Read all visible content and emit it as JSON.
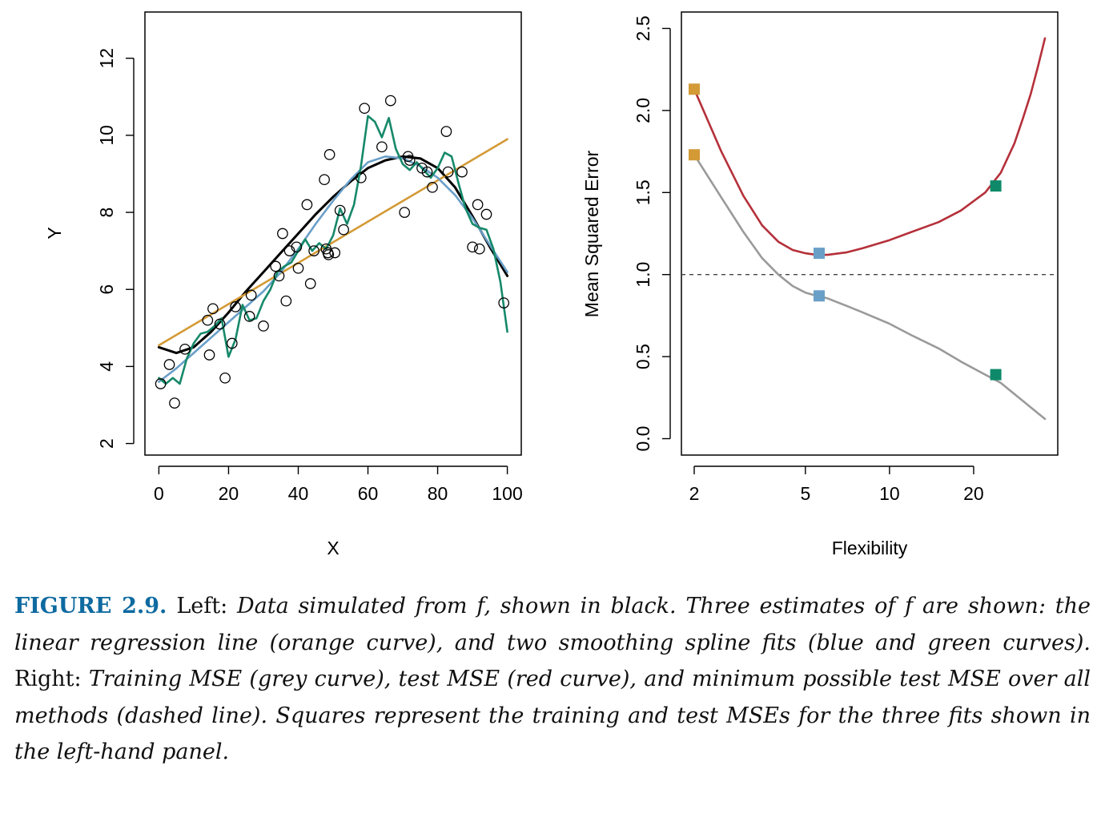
{
  "chart_data": [
    {
      "type": "scatter",
      "panel": "Left",
      "xlabel": "X",
      "ylabel": "Y",
      "xlim": [
        0,
        100
      ],
      "ylim": [
        1.7,
        13.2
      ],
      "xticks": [
        0,
        20,
        40,
        60,
        80,
        100
      ],
      "yticks": [
        2,
        4,
        6,
        8,
        10,
        12
      ],
      "points": {
        "x": [
          0.5,
          3,
          4.5,
          7.5,
          14,
          14.5,
          15.5,
          17.5,
          19,
          21,
          22,
          26,
          26.5,
          30,
          33.5,
          34.5,
          35.5,
          36.5,
          37.5,
          39.5,
          40,
          42.5,
          43.5,
          44.5,
          47.5,
          48,
          48.5,
          48.7,
          49,
          50.5,
          52,
          53,
          58,
          59,
          64,
          66.5,
          70.5,
          71.5,
          72,
          75.5,
          77,
          78.5,
          82.5,
          83,
          87,
          90,
          91.5,
          92,
          94,
          99
        ],
        "y": [
          3.55,
          4.05,
          3.05,
          4.45,
          5.2,
          4.3,
          5.5,
          5.1,
          3.7,
          4.6,
          5.55,
          5.3,
          5.85,
          5.05,
          6.6,
          6.35,
          7.45,
          5.7,
          7.0,
          7.1,
          6.55,
          8.2,
          6.15,
          7.0,
          8.85,
          7.05,
          6.95,
          6.9,
          9.5,
          6.95,
          8.05,
          7.55,
          8.9,
          10.7,
          9.7,
          10.9,
          8.0,
          9.45,
          9.35,
          9.15,
          9.05,
          8.65,
          10.1,
          9.05,
          9.05,
          7.1,
          8.2,
          7.05,
          7.95,
          5.65
        ]
      },
      "series": [
        {
          "color": "#000000",
          "x": [
            0,
            5,
            10,
            15,
            20,
            25,
            30,
            35,
            40,
            45,
            50,
            55,
            60,
            65,
            70,
            75,
            80,
            85,
            90,
            95,
            100
          ],
          "y": [
            4.5,
            4.35,
            4.5,
            4.9,
            5.4,
            5.95,
            6.45,
            6.95,
            7.45,
            7.95,
            8.4,
            8.8,
            9.15,
            9.35,
            9.45,
            9.4,
            9.15,
            8.65,
            7.9,
            7.1,
            6.35
          ]
        },
        {
          "color": "#d39a36",
          "x": [
            0,
            100
          ],
          "y": [
            4.55,
            9.9
          ]
        },
        {
          "color": "#6a9fc8",
          "x": [
            0,
            5,
            10,
            15,
            20,
            25,
            30,
            35,
            40,
            45,
            50,
            55,
            60,
            65,
            70,
            75,
            80,
            85,
            90,
            95,
            100
          ],
          "y": [
            3.6,
            3.95,
            4.35,
            4.75,
            5.15,
            5.55,
            5.95,
            6.45,
            7.05,
            7.7,
            8.3,
            8.85,
            9.3,
            9.45,
            9.4,
            9.2,
            8.9,
            8.45,
            7.85,
            7.15,
            6.45
          ]
        },
        {
          "color": "#16896a",
          "x": [
            0,
            2,
            4,
            6,
            8,
            10,
            12,
            14,
            16,
            18,
            20,
            22,
            24,
            26,
            28,
            30,
            32,
            34,
            36,
            38,
            40,
            42,
            44,
            46,
            48,
            50,
            52,
            54,
            56,
            58,
            60,
            62,
            64,
            66,
            68,
            70,
            72,
            74,
            76,
            78,
            80,
            82,
            84,
            86,
            88,
            90,
            92,
            94,
            96,
            98,
            100
          ],
          "y": [
            3.7,
            3.55,
            3.7,
            3.55,
            4.2,
            4.6,
            4.85,
            4.9,
            5.05,
            5.25,
            4.25,
            4.7,
            5.6,
            5.2,
            5.25,
            5.7,
            6.0,
            6.45,
            6.6,
            6.7,
            7.0,
            7.3,
            7.0,
            7.2,
            7.05,
            7.4,
            8.1,
            7.7,
            8.2,
            9.2,
            10.5,
            10.35,
            9.95,
            10.45,
            9.65,
            9.25,
            9.1,
            9.3,
            9.1,
            8.9,
            9.15,
            9.55,
            9.45,
            8.75,
            8.1,
            7.7,
            7.6,
            7.55,
            7.05,
            6.2,
            4.9
          ]
        }
      ]
    },
    {
      "type": "line",
      "panel": "Right",
      "xlabel": "Flexibility",
      "ylabel": "Mean Squared Error",
      "xscale": "log",
      "xlim": [
        1.8,
        40
      ],
      "ylim": [
        -0.1,
        2.6
      ],
      "xticks": [
        2,
        5,
        10,
        20
      ],
      "yticks": [
        0.0,
        0.5,
        1.0,
        1.5,
        2.0,
        2.5
      ],
      "hline": {
        "y": 1.0,
        "style": "dashed",
        "color": "#444444"
      },
      "series": [
        {
          "color": "#b5303a",
          "x": [
            2,
            2.5,
            3,
            3.5,
            4,
            4.5,
            5,
            5.5,
            6,
            7,
            8,
            10,
            12,
            15,
            18,
            22,
            25,
            28,
            30,
            32,
            34,
            36
          ],
          "y": [
            2.13,
            1.75,
            1.48,
            1.3,
            1.2,
            1.15,
            1.13,
            1.12,
            1.12,
            1.135,
            1.16,
            1.21,
            1.26,
            1.32,
            1.39,
            1.5,
            1.62,
            1.8,
            1.95,
            2.1,
            2.27,
            2.44
          ]
        },
        {
          "color": "#9a9a9a",
          "x": [
            2,
            2.5,
            3,
            3.5,
            4,
            4.5,
            5,
            5.5,
            6,
            7,
            8,
            10,
            12,
            15,
            18,
            22,
            25,
            30,
            36
          ],
          "y": [
            1.73,
            1.47,
            1.26,
            1.1,
            1.0,
            0.93,
            0.89,
            0.87,
            0.855,
            0.81,
            0.77,
            0.7,
            0.63,
            0.55,
            0.47,
            0.39,
            0.34,
            0.23,
            0.12
          ]
        }
      ],
      "markers": [
        {
          "x": 2,
          "y": 2.13,
          "color": "#d39a36"
        },
        {
          "x": 2,
          "y": 1.73,
          "color": "#d39a36"
        },
        {
          "x": 5.6,
          "y": 1.13,
          "color": "#6a9fc8"
        },
        {
          "x": 5.6,
          "y": 0.87,
          "color": "#6a9fc8"
        },
        {
          "x": 24,
          "y": 1.54,
          "color": "#0e8a6a"
        },
        {
          "x": 24,
          "y": 0.39,
          "color": "#0e8a6a"
        }
      ]
    }
  ],
  "caption": {
    "label": "FIGURE 2.9.",
    "left_word": "Left:",
    "left_text": "Data simulated from f, shown in black. Three estimates of f are shown: the linear regression line (orange curve), and two smoothing spline fits (blue and green curves).",
    "right_word": "Right:",
    "right_text": "Training MSE (grey curve), test MSE (red curve), and minimum possible test MSE over all methods (dashed line). Squares represent the training and test MSEs for the three fits shown in the left-hand panel."
  }
}
